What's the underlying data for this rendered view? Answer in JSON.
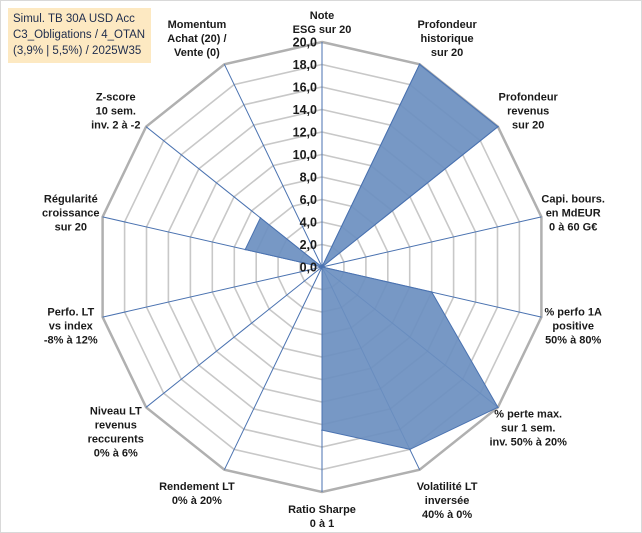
{
  "title": {
    "line1": "Simul. TB 30A USD Acc",
    "line2": "C3_Obligations / 4_OTAN",
    "line3": "(3,9% | 5,5%) / 2025W35"
  },
  "chart_data": {
    "type": "radar",
    "rlim": [
      0,
      20
    ],
    "tick_labels": [
      "0,0",
      "2,0",
      "4,0",
      "6,0",
      "8,0",
      "10,0",
      "12,0",
      "14,0",
      "16,0",
      "18,0",
      "20,0"
    ],
    "grid": true,
    "fill_color": "#6b8fc0",
    "line_color": "#4a72b0",
    "axes": [
      {
        "label": [
          "Note",
          "ESG sur 20"
        ],
        "value": 0
      },
      {
        "label": [
          "Profondeur",
          "historique",
          "sur 20"
        ],
        "value": 20
      },
      {
        "label": [
          "Profondeur",
          "revenus",
          "sur 20"
        ],
        "value": 20
      },
      {
        "label": [
          "Capi. bours.",
          "en MdEUR",
          "0 à 60 G€"
        ],
        "value": 0
      },
      {
        "label": [
          "% perfo 1A",
          "positive",
          "50% à 80%"
        ],
        "value": 10
      },
      {
        "label": [
          "% perte max.",
          "sur 1 sem.",
          "inv. 50% à 20%"
        ],
        "value": 20
      },
      {
        "label": [
          "Volatilité LT",
          "inversée",
          "40% à 0%"
        ],
        "value": 18
      },
      {
        "label": [
          "Ratio Sharpe",
          "0 à 1"
        ],
        "value": 14.5
      },
      {
        "label": [
          "Rendement LT",
          "0% à 20%"
        ],
        "value": 0
      },
      {
        "label": [
          "Niveau LT",
          "revenus",
          "reccurents",
          "0% à 6%"
        ],
        "value": 0
      },
      {
        "label": [
          "Perfo. LT",
          "vs index",
          "-8% à 12%"
        ],
        "value": 0
      },
      {
        "label": [
          "Régularité",
          "croissance",
          "sur 20"
        ],
        "value": 7
      },
      {
        "label": [
          "Z-score",
          "10 sem.",
          "inv. 2 à -2"
        ],
        "value": 7
      },
      {
        "label": [
          "Momentum",
          "Achat (20) /",
          "Vente (0)"
        ],
        "value": 0
      }
    ]
  }
}
